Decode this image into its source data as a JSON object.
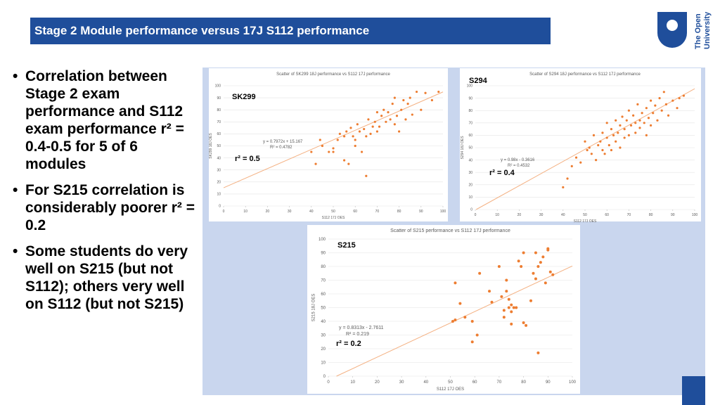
{
  "header": {
    "title": "Stage 2 Module performance versus 17J S112 performance"
  },
  "logo": {
    "lines": [
      "The Open",
      "University"
    ]
  },
  "bullets": [
    "Correlation between Stage 2 exam performance and S112 exam performance r² = 0.4-0.5 for 5 of 6 modules",
    "For S215 correlation is considerably poorer r² = 0.2",
    "Some students do very well on S215 (but not S112); others very well on S112 (but not S215)"
  ],
  "chart_data": [
    {
      "type": "scatter",
      "title": "Scatter of SK299 18J performance vs S112 17J performance",
      "module": "SK299",
      "r2_note": "r² = 0.5",
      "x_label": "S112 17J OES",
      "y_label": "SK299 18J OES",
      "xlim": [
        0,
        100
      ],
      "ylim": [
        0,
        100
      ],
      "xticks": [
        0,
        10,
        20,
        30,
        40,
        50,
        60,
        70,
        80,
        90,
        100
      ],
      "yticks": [
        0,
        10,
        20,
        30,
        40,
        50,
        60,
        70,
        80,
        90,
        100
      ],
      "grid": true,
      "trendline": {
        "equation": "y = 0.7972x + 15.167",
        "r2_label": "R² = 0.4782",
        "slope": 0.7972,
        "intercept": 15.167,
        "color": "#f4b183"
      },
      "series": [
        {
          "color": "#ed7d31",
          "x": [
            40,
            42,
            44,
            45,
            48,
            50,
            50,
            52,
            53,
            55,
            55,
            56,
            57,
            58,
            59,
            60,
            60,
            61,
            62,
            63,
            64,
            65,
            65,
            66,
            67,
            68,
            69,
            70,
            70,
            71,
            72,
            73,
            74,
            75,
            76,
            77,
            78,
            78,
            79,
            80,
            81,
            82,
            83,
            84,
            85,
            86,
            88,
            90,
            92,
            95,
            98
          ],
          "values": [
            45,
            35,
            55,
            50,
            45,
            45,
            48,
            55,
            60,
            58,
            38,
            62,
            35,
            65,
            58,
            55,
            50,
            68,
            62,
            45,
            64,
            58,
            25,
            72,
            60,
            66,
            70,
            78,
            62,
            66,
            75,
            80,
            70,
            78,
            72,
            85,
            68,
            90,
            75,
            62,
            80,
            88,
            72,
            85,
            90,
            76,
            95,
            80,
            94,
            88,
            95
          ]
        }
      ]
    },
    {
      "type": "scatter",
      "title": "Scatter of S294 18J performance vs S112 17J performance",
      "module": "S294",
      "r2_note": "r² = 0.4",
      "x_label": "S112 17J OES",
      "y_label": "S294 18J OES",
      "xlim": [
        0,
        100
      ],
      "ylim": [
        0,
        100
      ],
      "xticks": [
        0,
        10,
        20,
        30,
        40,
        50,
        60,
        70,
        80,
        90,
        100
      ],
      "yticks": [
        0,
        10,
        20,
        30,
        40,
        50,
        60,
        70,
        80,
        90,
        100
      ],
      "grid": true,
      "trendline": {
        "equation": "y = 0.98x - 0.3616",
        "r2_label": "R² = 0.4532",
        "slope": 0.98,
        "intercept": -0.3616,
        "color": "#f4b183"
      },
      "series": [
        {
          "color": "#ed7d31",
          "x": [
            40,
            42,
            44,
            46,
            48,
            50,
            51,
            52,
            53,
            54,
            55,
            56,
            57,
            58,
            58,
            59,
            60,
            60,
            61,
            62,
            62,
            63,
            64,
            64,
            65,
            66,
            66,
            67,
            68,
            68,
            69,
            70,
            70,
            71,
            72,
            73,
            73,
            74,
            75,
            75,
            76,
            77,
            78,
            78,
            79,
            80,
            80,
            81,
            82,
            83,
            84,
            85,
            86,
            87,
            88,
            90,
            92,
            93,
            95
          ],
          "values": [
            18,
            25,
            35,
            42,
            38,
            55,
            48,
            50,
            45,
            60,
            40,
            52,
            55,
            48,
            62,
            45,
            58,
            70,
            52,
            65,
            48,
            60,
            55,
            72,
            62,
            50,
            68,
            75,
            58,
            65,
            72,
            60,
            80,
            68,
            76,
            62,
            70,
            85,
            72,
            66,
            78,
            70,
            82,
            60,
            74,
            88,
            68,
            78,
            84,
            72,
            90,
            80,
            95,
            85,
            76,
            88,
            82,
            90,
            92
          ]
        }
      ]
    },
    {
      "type": "scatter",
      "title": "Scatter of S215 performance vs S112 17J performance",
      "module": "S215",
      "r2_note": "r² = 0.2",
      "x_label": "S112 17J OES",
      "y_label": "S215 18J OES",
      "xlim": [
        0,
        100
      ],
      "ylim": [
        0,
        100
      ],
      "xticks": [
        0,
        10,
        20,
        30,
        40,
        50,
        60,
        70,
        80,
        90,
        100
      ],
      "yticks": [
        0,
        10,
        20,
        30,
        40,
        50,
        60,
        70,
        80,
        90,
        100
      ],
      "grid": true,
      "trendline": {
        "equation": "y = 0.8313x - 2.7611",
        "r2_label": "R² = 0.219",
        "slope": 0.8313,
        "intercept": -2.7611,
        "color": "#f4b183"
      },
      "series": [
        {
          "color": "#ed7d31",
          "x": [
            52,
            54,
            52,
            51,
            56,
            59,
            59,
            61,
            62,
            66,
            67,
            70,
            71,
            72,
            72,
            73,
            73,
            74,
            74,
            75,
            75,
            75,
            76,
            77,
            78,
            79,
            80,
            80,
            81,
            83,
            84,
            85,
            85,
            86,
            86,
            87,
            88,
            89,
            90,
            90,
            91,
            92
          ],
          "values": [
            68,
            53,
            41,
            40,
            43,
            40,
            25,
            30,
            75,
            62,
            54,
            80,
            58,
            43,
            48,
            70,
            62,
            56,
            50,
            38,
            47,
            52,
            50,
            50,
            84,
            80,
            90,
            39,
            37,
            55,
            75,
            71,
            90,
            17,
            80,
            83,
            87,
            68,
            92,
            93,
            76,
            74
          ]
        }
      ]
    }
  ]
}
